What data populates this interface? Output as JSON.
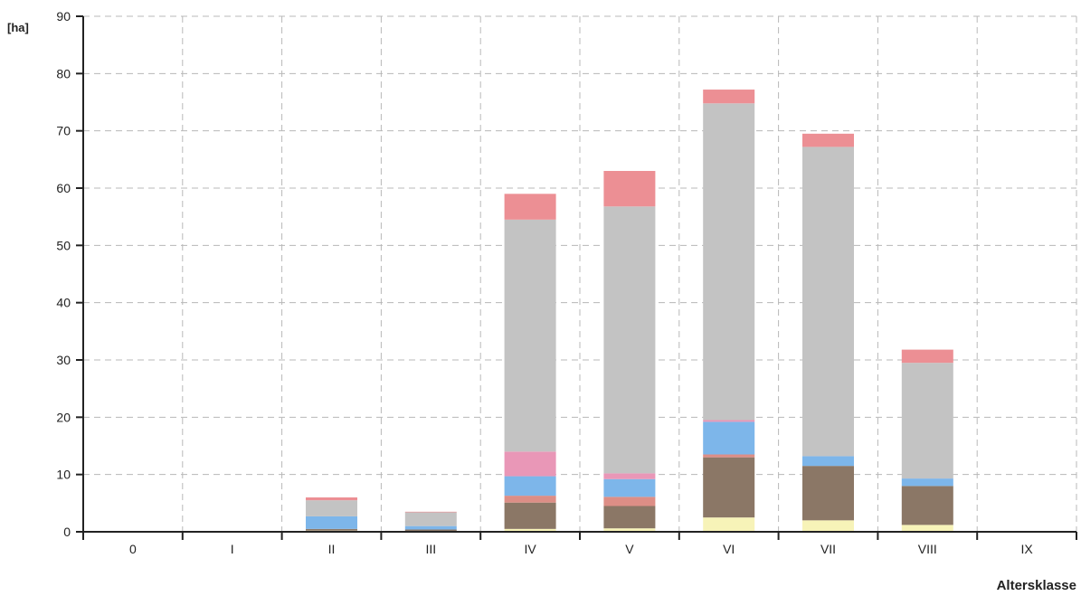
{
  "chart_data": {
    "type": "bar",
    "stacked": true,
    "title": "",
    "xlabel": "Altersklasse",
    "ylabel": "[ha]",
    "ylim": [
      0,
      90
    ],
    "yticks": [
      0,
      10,
      20,
      30,
      40,
      50,
      60,
      70,
      80,
      90
    ],
    "grid": true,
    "categories": [
      "0",
      "I",
      "II",
      "III",
      "IV",
      "V",
      "VI",
      "VII",
      "VIII",
      "IX"
    ],
    "series": [
      {
        "color": "#f7f3b8",
        "values": [
          0,
          0,
          0.2,
          0.1,
          0.5,
          0.6,
          2.5,
          2.0,
          1.2,
          0
        ]
      },
      {
        "color": "#8b7766",
        "values": [
          0,
          0,
          0.3,
          0.3,
          4.6,
          3.9,
          10.5,
          9.5,
          6.8,
          0
        ]
      },
      {
        "color": "#dd8e86",
        "values": [
          0,
          0,
          0,
          0,
          1.2,
          1.6,
          0.5,
          0,
          0,
          0
        ]
      },
      {
        "color": "#7db6ea",
        "values": [
          0,
          0,
          2.2,
          0.6,
          3.4,
          3.1,
          5.7,
          1.7,
          1.3,
          0
        ]
      },
      {
        "color": "#e997b7",
        "values": [
          0,
          0,
          0,
          0,
          4.3,
          1.0,
          0.3,
          0,
          0,
          0
        ]
      },
      {
        "color": "#c3c3c3",
        "values": [
          0,
          0,
          2.8,
          2.4,
          40.5,
          46.6,
          55.3,
          54.0,
          20.2,
          0
        ]
      },
      {
        "color": "#ec8f94",
        "values": [
          0,
          0,
          0.5,
          0.1,
          4.5,
          6.2,
          2.4,
          2.3,
          2.3,
          0
        ]
      }
    ]
  }
}
